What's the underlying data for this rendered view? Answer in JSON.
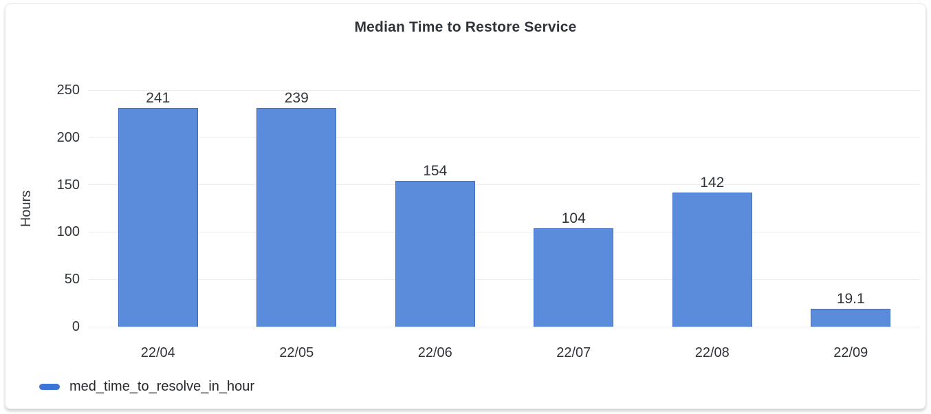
{
  "chart_data": {
    "type": "bar",
    "title": "Median Time to Restore Service",
    "ylabel": "Hours",
    "xlabel": "",
    "categories": [
      "22/04",
      "22/05",
      "22/06",
      "22/07",
      "22/08",
      "22/09"
    ],
    "series": [
      {
        "name": "med_time_to_resolve_in_hour",
        "values": [
          241,
          239,
          154,
          104,
          142,
          19.1
        ]
      }
    ],
    "value_labels": [
      "241",
      "239",
      "154",
      "104",
      "142",
      "19.1"
    ],
    "y_ticks": [
      0,
      50,
      100,
      150,
      200,
      250
    ],
    "ylim": [
      0,
      250
    ],
    "grid": true,
    "legend_position": "bottom-left",
    "colors": {
      "bar_fill": "#5b8bdb",
      "bar_border": "#3d6cc0",
      "legend_marker": "#3b74d6",
      "grid_line": "#ededf0",
      "text": "#2f343a"
    }
  }
}
